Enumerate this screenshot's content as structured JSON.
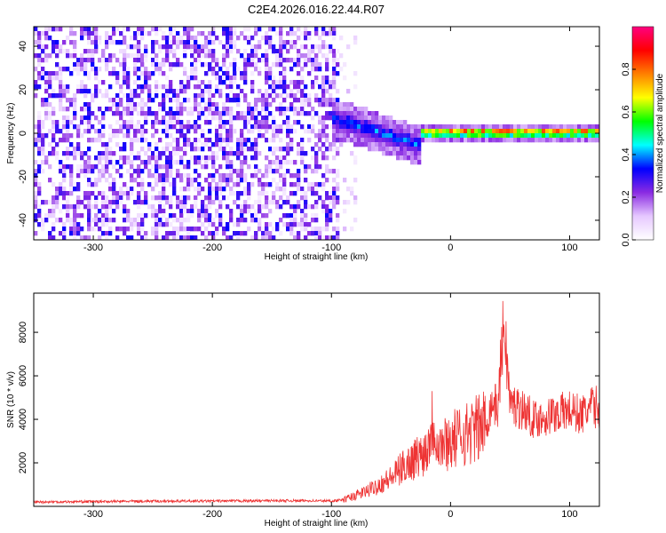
{
  "title": "C2E4.2026.016.22.44.R07",
  "chart_data": [
    {
      "type": "heatmap",
      "xlabel": "Height of straight line (km)",
      "ylabel": "Frequency (Hz)",
      "xlim": [
        -350,
        125
      ],
      "ylim": [
        -49,
        49
      ],
      "xticks": [
        -300,
        -200,
        -100,
        0,
        100
      ],
      "xtick_labels": [
        "-300",
        "-200",
        "-100",
        "0",
        "100"
      ],
      "yticks": [
        -40,
        -20,
        0,
        20,
        40
      ],
      "ytick_labels": [
        "-40",
        "-20",
        "0",
        "20",
        "40"
      ],
      "colorbar": {
        "label": "Normalized spectral amplitude",
        "range": [
          0,
          1
        ],
        "ticks": [
          0,
          0.2,
          0.4,
          0.6,
          0.8
        ],
        "tick_labels": [
          "0.0",
          "0.2",
          "0.4",
          "0.6",
          "0.8"
        ],
        "colors": [
          "#ffffff",
          "#e6c8ff",
          "#8a2be2",
          "#0000ff",
          "#00ffff",
          "#00ff00",
          "#ffff00",
          "#ff8000",
          "#ff0000",
          "#ff0080"
        ]
      },
      "regions": [
        {
          "x_range": [
            -350,
            -95
          ],
          "freq_range": [
            -49,
            49
          ],
          "amplitude": "noise",
          "level": 0.15
        },
        {
          "x_range": [
            -95,
            -80
          ],
          "freq_range": [
            -49,
            49
          ],
          "amplitude": "sparse noise",
          "level": 0.05
        },
        {
          "x_range": [
            -100,
            -25
          ],
          "freq_center": [
            8,
            -5
          ],
          "amplitude": "signal onset",
          "level": 0.4
        },
        {
          "x_range": [
            -25,
            125
          ],
          "freq_center": 1.5,
          "amplitude": "strong carrier",
          "level": 0.9
        }
      ]
    },
    {
      "type": "line",
      "xlabel": "Height of straight line (km)",
      "ylabel": "SNR (10 * v/v)",
      "xlim": [
        -350,
        125
      ],
      "ylim": [
        0,
        9800
      ],
      "xticks": [
        -300,
        -200,
        -100,
        0,
        100
      ],
      "xtick_labels": [
        "-300",
        "-200",
        "-100",
        "0",
        "100"
      ],
      "yticks": [
        2000,
        4000,
        6000,
        8000
      ],
      "ytick_labels": [
        "2000",
        "4000",
        "6000",
        "8000"
      ],
      "color": "#ee3333",
      "series": [
        {
          "x": [
            -350,
            -300,
            -250,
            -200,
            -150,
            -120,
            -100,
            -90,
            -80,
            -70,
            -60,
            -50,
            -40,
            -30,
            -20,
            -15,
            -10,
            0,
            10,
            20,
            30,
            35,
            40,
            42,
            45,
            50,
            60,
            70,
            80,
            90,
            100,
            110,
            120,
            125
          ],
          "y": [
            200,
            220,
            240,
            240,
            260,
            260,
            250,
            300,
            500,
            700,
            1000,
            1300,
            1800,
            2200,
            2600,
            4000,
            2800,
            3000,
            3300,
            3500,
            3800,
            4800,
            4500,
            6500,
            8500,
            4700,
            4500,
            4000,
            4100,
            4300,
            4400,
            4200,
            4600,
            4500
          ]
        }
      ]
    }
  ]
}
